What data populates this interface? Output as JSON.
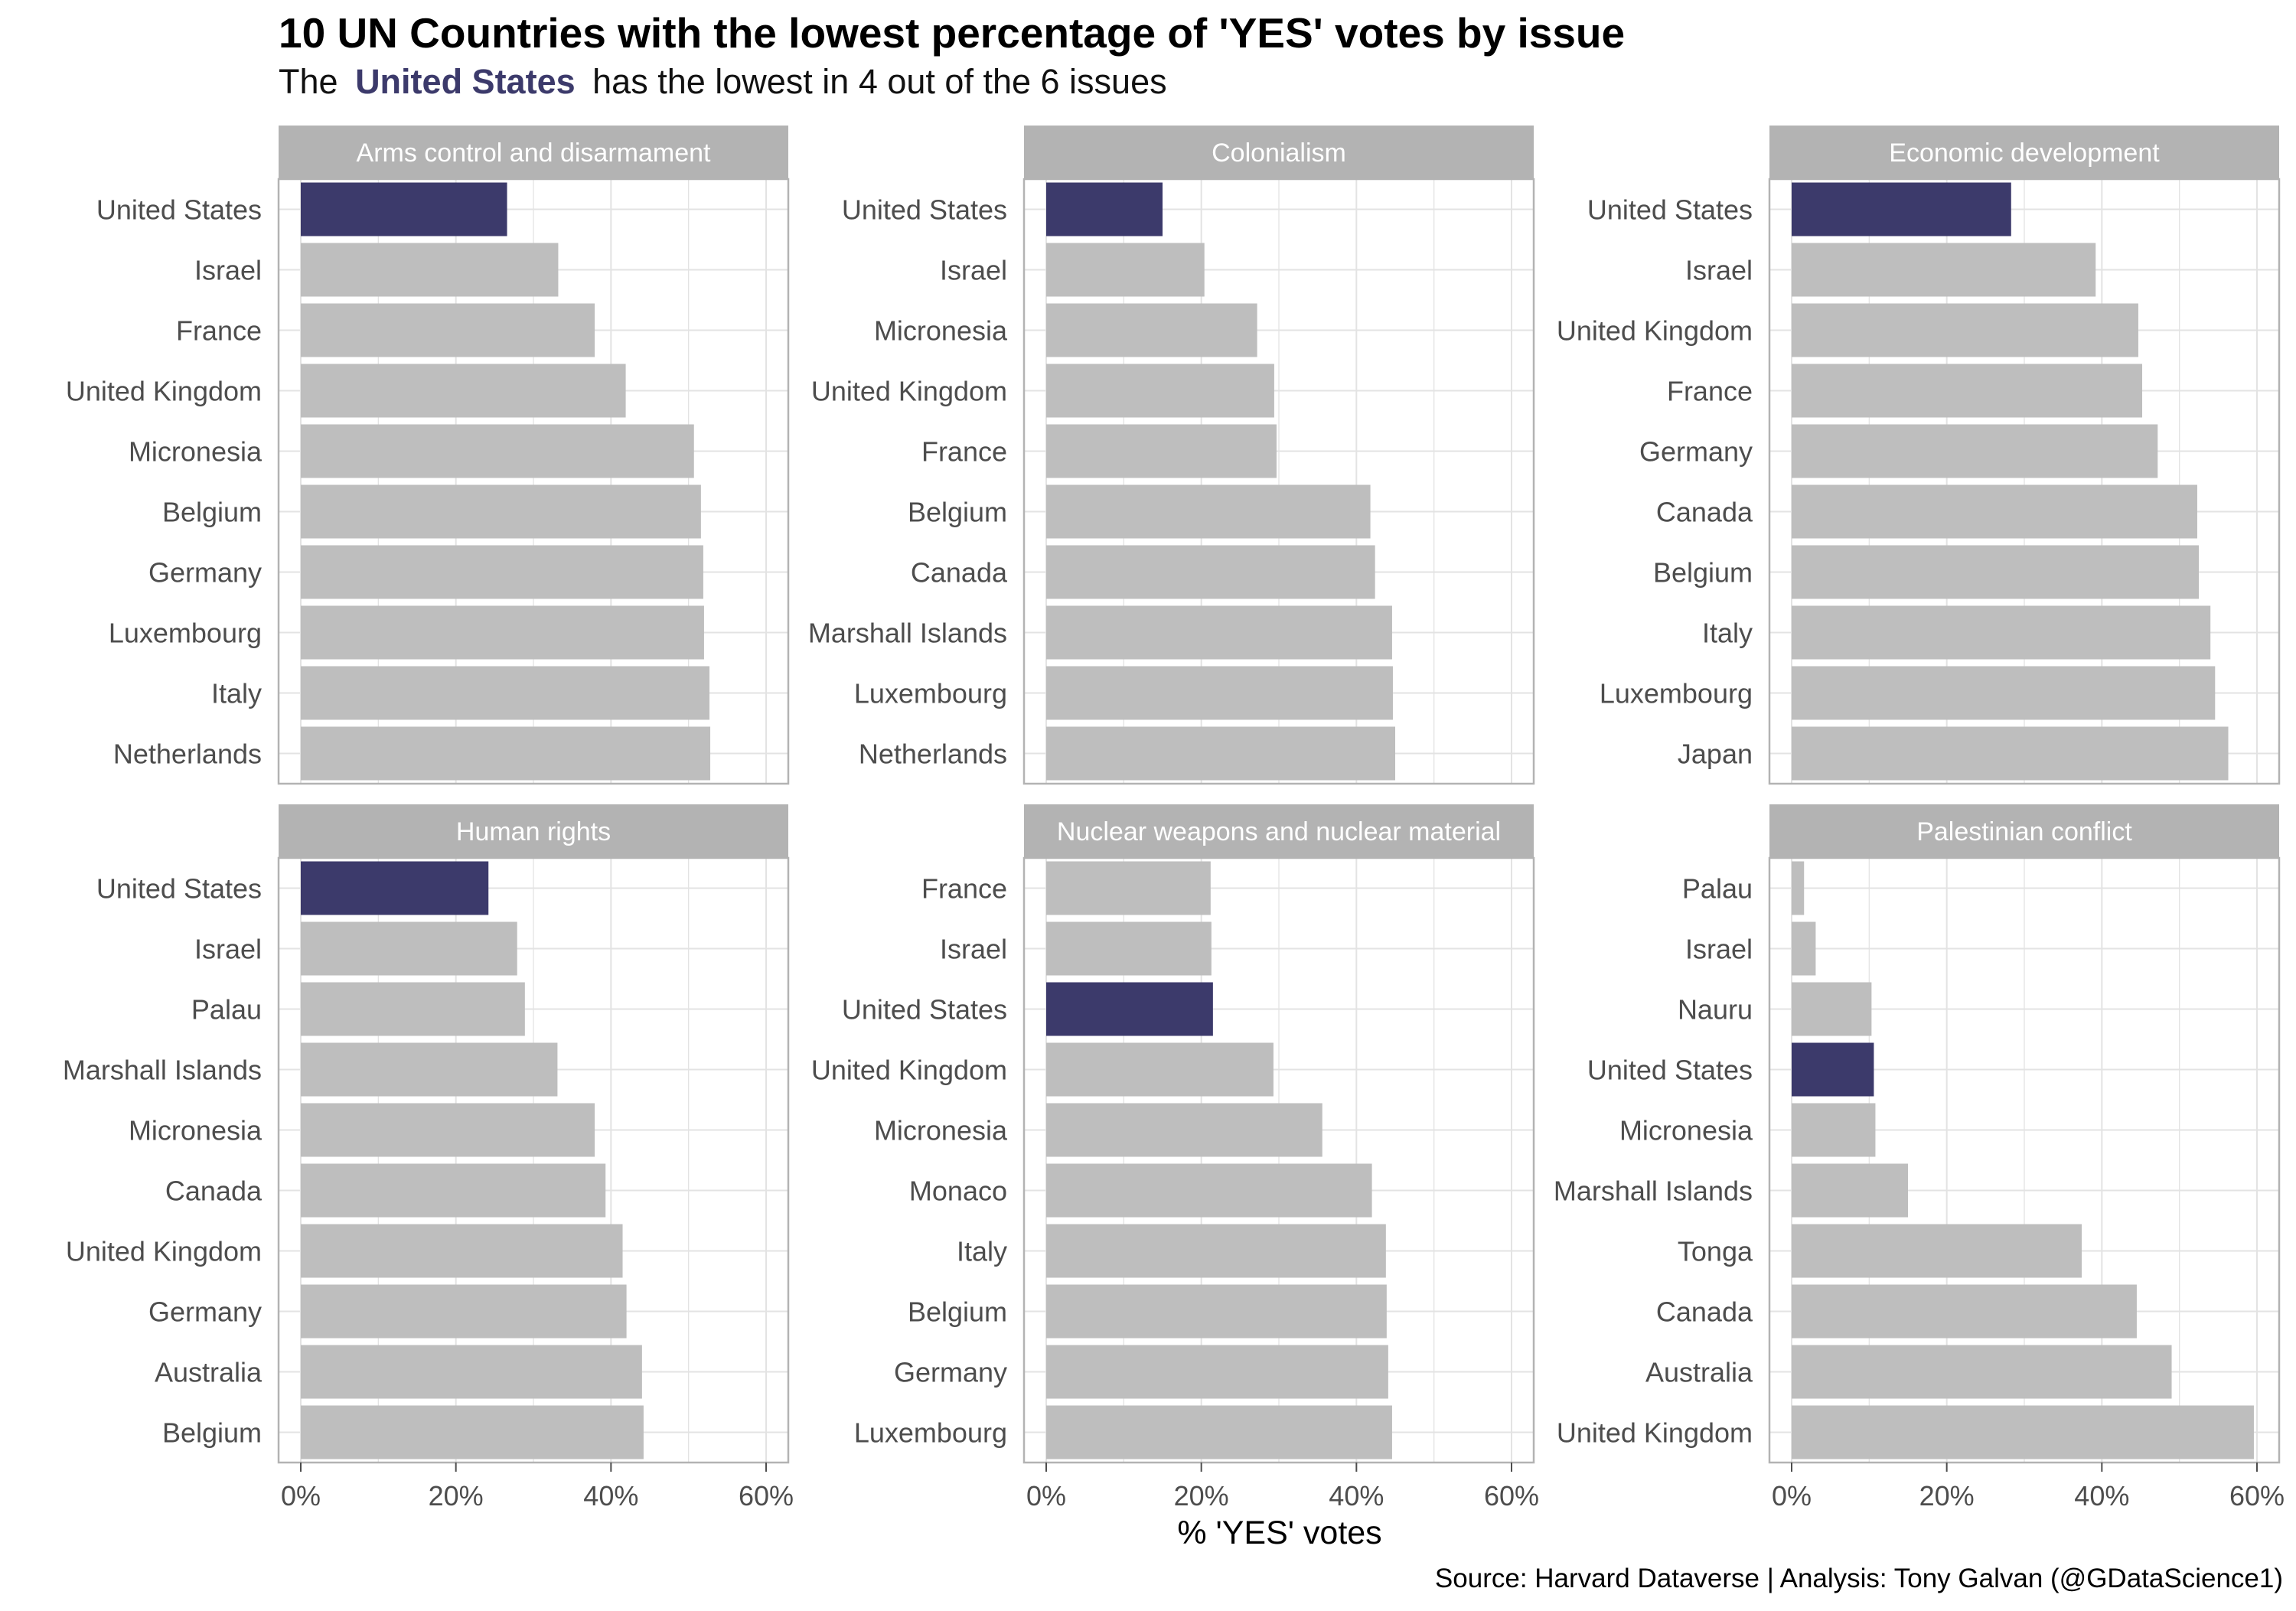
{
  "header": {
    "title": "10 UN Countries with the lowest percentage of 'YES' votes by issue",
    "subtitle_before": "The",
    "subtitle_highlight": "United States",
    "subtitle_after": "has the lowest in 4 out of the 6 issues"
  },
  "xlabel": "% 'YES' votes",
  "caption": "Source: Harvard Dataverse  |  Analysis: Tony Galvan (@GDataScience1)",
  "colors": {
    "highlight": "#3c3a6b",
    "bar": "#bebebe",
    "strip": "#b3b3b3",
    "strip_text": "#ffffff",
    "grid": "#e3e3e3",
    "panel_border": "#b3b3b3",
    "axis_text": "#4d4d4d",
    "title": "#000000"
  },
  "chart_data": {
    "type": "bar",
    "orientation": "horizontal",
    "layout": "facets 2 rows x 3 columns",
    "xlim": [
      0,
      0.6
    ],
    "xticks": [
      0,
      0.2,
      0.4,
      0.6
    ],
    "xtick_labels": [
      "0%",
      "20%",
      "40%",
      "60%"
    ],
    "highlight_category": "United States",
    "grid": true,
    "panels": [
      {
        "title": "Arms control and disarmament",
        "categories": [
          "United States",
          "Israel",
          "France",
          "United Kingdom",
          "Micronesia",
          "Belgium",
          "Germany",
          "Luxembourg",
          "Italy",
          "Netherlands"
        ],
        "values": [
          0.266,
          0.332,
          0.379,
          0.419,
          0.507,
          0.516,
          0.519,
          0.52,
          0.527,
          0.528
        ]
      },
      {
        "title": "Colonialism",
        "categories": [
          "United States",
          "Israel",
          "Micronesia",
          "United Kingdom",
          "France",
          "Belgium",
          "Canada",
          "Marshall Islands",
          "Luxembourg",
          "Netherlands"
        ],
        "values": [
          0.15,
          0.204,
          0.272,
          0.294,
          0.297,
          0.418,
          0.424,
          0.446,
          0.447,
          0.45
        ]
      },
      {
        "title": "Economic development",
        "categories": [
          "United States",
          "Israel",
          "United Kingdom",
          "France",
          "Germany",
          "Canada",
          "Belgium",
          "Italy",
          "Luxembourg",
          "Japan"
        ],
        "values": [
          0.283,
          0.392,
          0.447,
          0.452,
          0.472,
          0.523,
          0.525,
          0.54,
          0.546,
          0.563
        ]
      },
      {
        "title": "Human rights",
        "categories": [
          "United States",
          "Israel",
          "Palau",
          "Marshall Islands",
          "Micronesia",
          "Canada",
          "United Kingdom",
          "Germany",
          "Australia",
          "Belgium"
        ],
        "values": [
          0.242,
          0.279,
          0.289,
          0.331,
          0.379,
          0.393,
          0.415,
          0.42,
          0.44,
          0.442
        ]
      },
      {
        "title": "Nuclear weapons and nuclear material",
        "categories": [
          "France",
          "Israel",
          "United States",
          "United Kingdom",
          "Micronesia",
          "Monaco",
          "Italy",
          "Belgium",
          "Germany",
          "Luxembourg"
        ],
        "values": [
          0.212,
          0.213,
          0.215,
          0.293,
          0.356,
          0.42,
          0.438,
          0.439,
          0.441,
          0.446
        ]
      },
      {
        "title": "Palestinian conflict",
        "categories": [
          "Palau",
          "Israel",
          "Nauru",
          "United States",
          "Micronesia",
          "Marshall Islands",
          "Tonga",
          "Canada",
          "Australia",
          "United Kingdom"
        ],
        "values": [
          0.016,
          0.031,
          0.103,
          0.106,
          0.108,
          0.15,
          0.374,
          0.445,
          0.49,
          0.596
        ]
      }
    ]
  }
}
